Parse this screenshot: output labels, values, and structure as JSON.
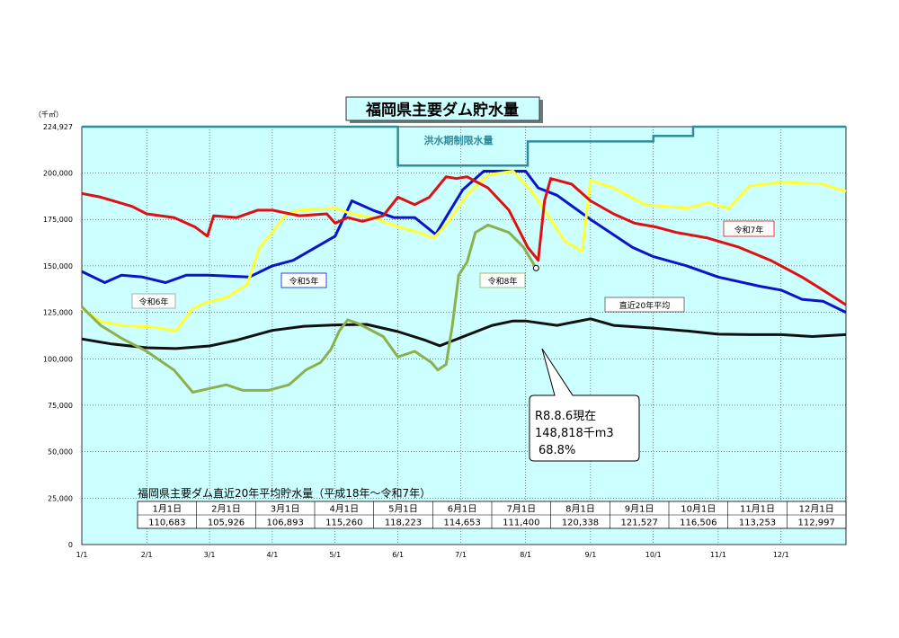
{
  "chart_data": {
    "type": "line",
    "title": "福岡県主要ダム貯水量",
    "unit_label": "（千㎥）",
    "ylim": [
      0,
      224927
    ],
    "yticks": [
      {
        "value": 224927,
        "label": "224,927"
      },
      {
        "value": 200000,
        "label": "200,000"
      },
      {
        "value": 175000,
        "label": "175,000"
      },
      {
        "value": 150000,
        "label": "150,000"
      },
      {
        "value": 125000,
        "label": "125,000"
      },
      {
        "value": 100000,
        "label": "100,000"
      },
      {
        "value": 75000,
        "label": "75,000"
      },
      {
        "value": 50000,
        "label": "50,000"
      },
      {
        "value": 25000,
        "label": "25,000"
      },
      {
        "value": 0,
        "label": "0"
      }
    ],
    "xlim": [
      1,
      366
    ],
    "xticks": [
      {
        "day": 1,
        "label": "1/1"
      },
      {
        "day": 32,
        "label": "2/1"
      },
      {
        "day": 62,
        "label": "3/1"
      },
      {
        "day": 92,
        "label": "4/1"
      },
      {
        "day": 122,
        "label": "5/1"
      },
      {
        "day": 152,
        "label": "6/1"
      },
      {
        "day": 182,
        "label": "7/1"
      },
      {
        "day": 213,
        "label": "8/1"
      },
      {
        "day": 244,
        "label": "9/1"
      },
      {
        "day": 274,
        "label": "10/1"
      },
      {
        "day": 305,
        "label": "11/1"
      },
      {
        "day": 335,
        "label": "12/1"
      }
    ],
    "grid": true,
    "background_color": "#ccffff",
    "flood_limit": {
      "label": "洪水期制限水量",
      "color": "#2f8c9c",
      "points": [
        [
          1,
          224927
        ],
        [
          152,
          224927
        ],
        [
          152,
          204000
        ],
        [
          214,
          204000
        ],
        [
          214,
          217000
        ],
        [
          274,
          217000
        ],
        [
          274,
          220000
        ],
        [
          293,
          220000
        ],
        [
          293,
          224927
        ],
        [
          366,
          224927
        ]
      ]
    },
    "series": [
      {
        "name": "令和5年",
        "color": "#0a14c8",
        "points": [
          [
            1,
            147000
          ],
          [
            12,
            141000
          ],
          [
            20,
            145000
          ],
          [
            30,
            144000
          ],
          [
            41,
            141000
          ],
          [
            51,
            145000
          ],
          [
            61,
            145000
          ],
          [
            81,
            144000
          ],
          [
            92,
            150000
          ],
          [
            102,
            153000
          ],
          [
            122,
            166000
          ],
          [
            130,
            185000
          ],
          [
            140,
            180000
          ],
          [
            150,
            176000
          ],
          [
            160,
            176000
          ],
          [
            170,
            167000
          ],
          [
            183,
            191000
          ],
          [
            193,
            201000
          ],
          [
            213,
            201000
          ],
          [
            219,
            192000
          ],
          [
            228,
            188000
          ],
          [
            244,
            175000
          ],
          [
            264,
            160000
          ],
          [
            274,
            155000
          ],
          [
            290,
            150000
          ],
          [
            305,
            144000
          ],
          [
            325,
            139000
          ],
          [
            335,
            137000
          ],
          [
            345,
            132000
          ],
          [
            355,
            131000
          ],
          [
            366,
            125000
          ]
        ]
      },
      {
        "name": "令和6年",
        "color": "#ffff33",
        "points": [
          [
            1,
            127000
          ],
          [
            10,
            120000
          ],
          [
            20,
            118000
          ],
          [
            35,
            117000
          ],
          [
            46,
            115000
          ],
          [
            54,
            127000
          ],
          [
            60,
            130000
          ],
          [
            70,
            133000
          ],
          [
            80,
            140000
          ],
          [
            86,
            160000
          ],
          [
            92,
            168000
          ],
          [
            99,
            178000
          ],
          [
            105,
            180000
          ],
          [
            122,
            181000
          ],
          [
            130,
            178000
          ],
          [
            140,
            176000
          ],
          [
            152,
            171000
          ],
          [
            162,
            168000
          ],
          [
            169,
            165000
          ],
          [
            175,
            172000
          ],
          [
            185,
            188000
          ],
          [
            195,
            199000
          ],
          [
            207,
            201000
          ],
          [
            216,
            190000
          ],
          [
            222,
            180000
          ],
          [
            232,
            163000
          ],
          [
            240,
            158000
          ],
          [
            244,
            196000
          ],
          [
            255,
            192000
          ],
          [
            270,
            183000
          ],
          [
            290,
            181000
          ],
          [
            300,
            184000
          ],
          [
            310,
            181000
          ],
          [
            320,
            193000
          ],
          [
            335,
            195000
          ],
          [
            355,
            194000
          ],
          [
            366,
            190000
          ]
        ]
      },
      {
        "name": "令和7年",
        "color": "#dd1111",
        "points": [
          [
            1,
            189000
          ],
          [
            10,
            187000
          ],
          [
            25,
            182000
          ],
          [
            32,
            178000
          ],
          [
            45,
            176000
          ],
          [
            55,
            171000
          ],
          [
            61,
            166000
          ],
          [
            64,
            177000
          ],
          [
            75,
            176000
          ],
          [
            85,
            180000
          ],
          [
            92,
            180000
          ],
          [
            105,
            177000
          ],
          [
            118,
            178000
          ],
          [
            122,
            173000
          ],
          [
            128,
            176000
          ],
          [
            135,
            174000
          ],
          [
            145,
            177000
          ],
          [
            152,
            187000
          ],
          [
            160,
            183000
          ],
          [
            167,
            187000
          ],
          [
            175,
            198000
          ],
          [
            180,
            197000
          ],
          [
            185,
            198000
          ],
          [
            190,
            195000
          ],
          [
            195,
            192000
          ],
          [
            205,
            180000
          ],
          [
            214,
            160000
          ],
          [
            219,
            153000
          ],
          [
            222,
            185000
          ],
          [
            225,
            197000
          ],
          [
            235,
            194000
          ],
          [
            244,
            185000
          ],
          [
            255,
            178000
          ],
          [
            265,
            173000
          ],
          [
            275,
            171000
          ],
          [
            285,
            168000
          ],
          [
            300,
            165000
          ],
          [
            315,
            160000
          ],
          [
            330,
            153000
          ],
          [
            345,
            144000
          ],
          [
            355,
            137000
          ],
          [
            366,
            129000
          ]
        ]
      },
      {
        "name": "令和8年",
        "color": "#8cb04c",
        "points": [
          [
            1,
            128000
          ],
          [
            10,
            118000
          ],
          [
            20,
            111000
          ],
          [
            32,
            104000
          ],
          [
            45,
            94000
          ],
          [
            54,
            82000
          ],
          [
            62,
            84000
          ],
          [
            70,
            86000
          ],
          [
            78,
            83000
          ],
          [
            90,
            83000
          ],
          [
            100,
            86000
          ],
          [
            108,
            94000
          ],
          [
            115,
            98000
          ],
          [
            120,
            105000
          ],
          [
            124,
            115000
          ],
          [
            128,
            121000
          ],
          [
            133,
            119000
          ],
          [
            145,
            112000
          ],
          [
            152,
            101000
          ],
          [
            160,
            104000
          ],
          [
            168,
            98000
          ],
          [
            171,
            94000
          ],
          [
            175,
            97000
          ],
          [
            178,
            118000
          ],
          [
            181,
            145000
          ],
          [
            185,
            152000
          ],
          [
            189,
            168000
          ],
          [
            195,
            172000
          ],
          [
            205,
            168000
          ],
          [
            212,
            160000
          ],
          [
            218,
            148818
          ]
        ]
      },
      {
        "name": "直近20年平均",
        "color": "#111111",
        "points": [
          [
            1,
            110683
          ],
          [
            15,
            108000
          ],
          [
            32,
            105926
          ],
          [
            46,
            105500
          ],
          [
            62,
            106893
          ],
          [
            75,
            110000
          ],
          [
            92,
            115260
          ],
          [
            107,
            117500
          ],
          [
            122,
            118223
          ],
          [
            137,
            118500
          ],
          [
            152,
            114653
          ],
          [
            165,
            110000
          ],
          [
            172,
            107000
          ],
          [
            182,
            111400
          ],
          [
            197,
            118000
          ],
          [
            207,
            120338
          ],
          [
            213,
            120338
          ],
          [
            228,
            118000
          ],
          [
            244,
            121527
          ],
          [
            255,
            118000
          ],
          [
            274,
            116506
          ],
          [
            290,
            115000
          ],
          [
            305,
            113253
          ],
          [
            320,
            113000
          ],
          [
            335,
            112997
          ],
          [
            350,
            112000
          ],
          [
            366,
            113000
          ]
        ]
      }
    ],
    "current_marker": {
      "day": 218,
      "value": 148818
    },
    "callout": {
      "lines": [
        "R8.8.6現在",
        "148,818千m3",
        "68.8%"
      ]
    },
    "table": {
      "title": "福岡県主要ダム直近20年平均貯水量（平成18年～令和7年）",
      "headers": [
        "1月1日",
        "2月1日",
        "3月1日",
        "4月1日",
        "5月1日",
        "6月1日",
        "7月1日",
        "8月1日",
        "9月1日",
        "10月1日",
        "11月1日",
        "12月1日"
      ],
      "values": [
        "110,683",
        "105,926",
        "106,893",
        "115,260",
        "118,223",
        "114,653",
        "111,400",
        "120,338",
        "121,527",
        "116,506",
        "113,253",
        "112,997"
      ]
    }
  }
}
